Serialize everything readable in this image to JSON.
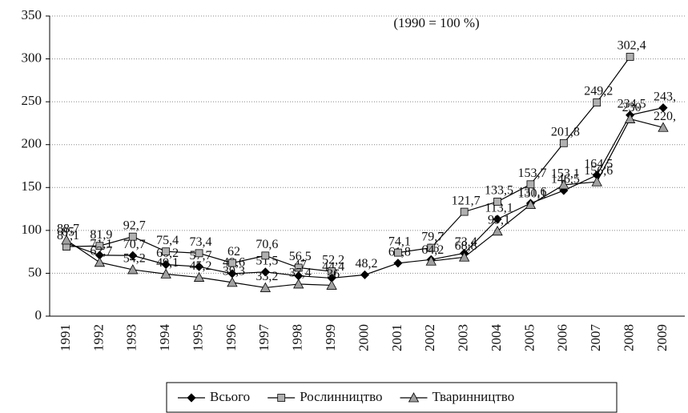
{
  "chart_data": {
    "type": "line",
    "annotation": "(1990 = 100 %)",
    "categories": [
      "1991",
      "1992",
      "1993",
      "1994",
      "1995",
      "1996",
      "1997",
      "1998",
      "1999",
      "2000",
      "2001",
      "2002",
      "2003",
      "2004",
      "2005",
      "2006",
      "2007",
      "2008",
      "2009"
    ],
    "ylim": [
      0,
      350
    ],
    "yticks": [
      0,
      50,
      100,
      150,
      200,
      250,
      300,
      350
    ],
    "grid": true,
    "legend": "bottom",
    "series": [
      {
        "name": "Всього",
        "color": "#000000",
        "marker": "diamond",
        "marker_color": "#000000",
        "values": [
          85,
          71.1,
          70.7,
          60.2,
          57.7,
          49.6,
          51.5,
          47,
          44.4,
          48.2,
          61.8,
          66,
          73.4,
          113.1,
          131.6,
          146.5,
          164.5,
          234.5,
          243
        ],
        "value_labels": [
          "85",
          "71,1",
          "70,7",
          "60,2",
          "57,7",
          "49,6",
          "51,5",
          "47",
          "44,4",
          "48,2",
          "61,8",
          "66",
          "73,4",
          "113,1",
          "131,6",
          "146,5",
          "164,5",
          "234,5",
          "243,"
        ]
      },
      {
        "name": "Рослинництво",
        "color": "#000000",
        "marker": "square",
        "marker_color": "#b0b0b0",
        "values": [
          81.1,
          81.9,
          92.7,
          75.4,
          73.4,
          62,
          70.6,
          56.5,
          52.2,
          null,
          74.1,
          79.7,
          121.7,
          133.5,
          153.7,
          201.8,
          249.2,
          302.4,
          null
        ],
        "value_labels": [
          "81,1",
          "81,9",
          "92,7",
          "75,4",
          "73,4",
          "62",
          "70,6",
          "56,5",
          "52,2",
          null,
          "74,1",
          "79,7",
          "121,7",
          "133,5",
          "153,7",
          "201,8",
          "249,2",
          "302,4",
          null
        ]
      },
      {
        "name": "Тваринництво",
        "color": "#000000",
        "marker": "triangle",
        "marker_color": "#a0a0a0",
        "values": [
          88.7,
          62.7,
          54.2,
          49.1,
          45.2,
          39.3,
          33.2,
          37.4,
          36,
          null,
          null,
          64.2,
          68.8,
          99.1,
          130.1,
          153.1,
          156.6,
          230,
          220
        ],
        "value_labels": [
          "88,7",
          "62,7",
          "54,2",
          "49,1",
          "45,2",
          "39,3",
          "33,2",
          "37,4",
          "36",
          null,
          null,
          "64,2",
          "68,8",
          "99,1",
          "130,1",
          "153,1",
          "156,6",
          "230",
          "220,"
        ]
      }
    ]
  }
}
